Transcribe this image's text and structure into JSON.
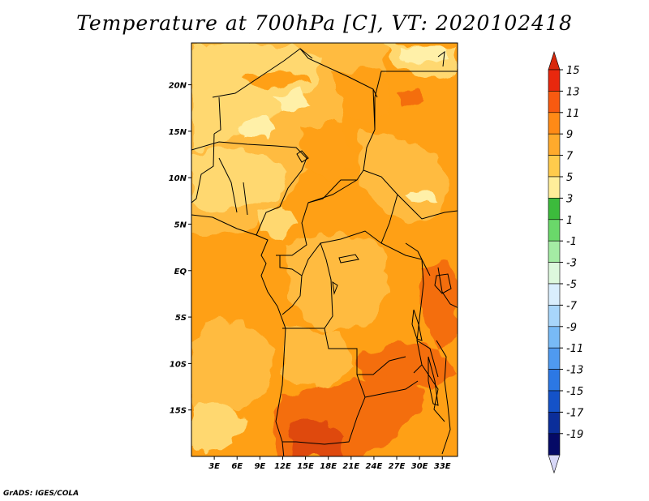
{
  "title": "Temperature at 700hPa [C], VT: 2020102418",
  "credit": "GrADS: IGES/COLA",
  "map": {
    "lat_labels": [
      {
        "lat": 20,
        "label": "20N"
      },
      {
        "lat": 15,
        "label": "15N"
      },
      {
        "lat": 10,
        "label": "10N"
      },
      {
        "lat": 5,
        "label": "5N"
      },
      {
        "lat": 0,
        "label": "EQ"
      },
      {
        "lat": -5,
        "label": "5S"
      },
      {
        "lat": -10,
        "label": "10S"
      },
      {
        "lat": -15,
        "label": "15S"
      }
    ],
    "lon_labels": [
      {
        "lon": 3,
        "label": "3E"
      },
      {
        "lon": 6,
        "label": "6E"
      },
      {
        "lon": 9,
        "label": "9E"
      },
      {
        "lon": 12,
        "label": "12E"
      },
      {
        "lon": 15,
        "label": "15E"
      },
      {
        "lon": 18,
        "label": "18E"
      },
      {
        "lon": 21,
        "label": "21E"
      },
      {
        "lon": 24,
        "label": "24E"
      },
      {
        "lon": 27,
        "label": "27E"
      },
      {
        "lon": 30,
        "label": "30E"
      },
      {
        "lon": 33,
        "label": "33E"
      }
    ],
    "lon_range": [
      0,
      35
    ],
    "lat_range": [
      -20,
      24.5
    ],
    "field_colors": {
      "t5": "#fff0a8",
      "t7": "#ffd870",
      "t9": "#ffbb40",
      "t11": "#ffa015",
      "t13": "#f46e0c",
      "t15": "#df4a0a"
    }
  },
  "colorbar": {
    "labels": [
      "15",
      "13",
      "11",
      "9",
      "7",
      "5",
      "3",
      "1",
      "-1",
      "-3",
      "-5",
      "-7",
      "-9",
      "-11",
      "-13",
      "-15",
      "-17",
      "-19"
    ],
    "colors": [
      "#e8280e",
      "#f85a10",
      "#ff8a16",
      "#ffaa2c",
      "#ffcb4c",
      "#ffee9a",
      "#3cbb3c",
      "#6ad86a",
      "#a4eca4",
      "#ddf8dd",
      "#d9eefd",
      "#a8d6fb",
      "#78baf6",
      "#4f9af0",
      "#2c78e4",
      "#1452c8",
      "#0b2e9a",
      "#050a66"
    ],
    "top_arrow_color": "#d8290c",
    "bottom_arrow_color": "#d8d8f8"
  }
}
